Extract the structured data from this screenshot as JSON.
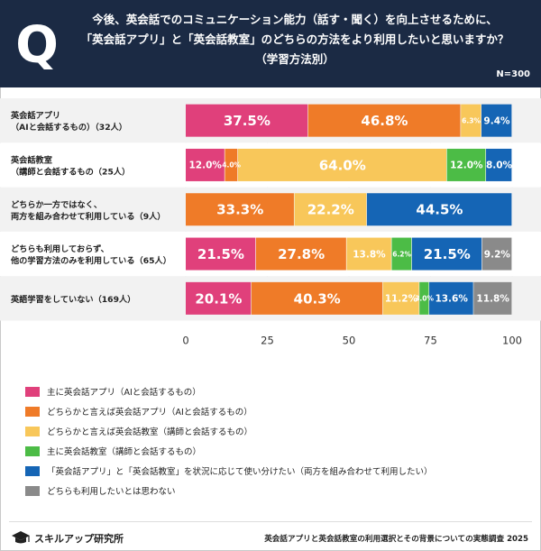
{
  "header": {
    "q_letter": "Q",
    "title_lines": [
      "今後、英会話でのコミュニケーション能力（話す・聞く）を向上させるために、",
      "「英会話アプリ」と「英会話教室」のどちらの方法をより利用したいと思いますか？",
      "（学習方法別）"
    ],
    "sample_size": "N=300"
  },
  "chart_data": {
    "type": "bar",
    "orientation": "horizontal",
    "stacked": true,
    "title": "今後、英会話でのコミュニケーション能力（話す・聞く）を向上させるために、「英会話アプリ」と「英会話教室」のどちらの方法をより利用したいと思いますか？（学習方法別）",
    "xlim": [
      0,
      100
    ],
    "xticks": [
      0,
      25,
      50,
      75,
      100
    ],
    "categories": [
      [
        "英会話アプリ",
        "（AIと会話するもの）（32人）"
      ],
      [
        "英会話教室",
        "（講師と会話するもの（25人）"
      ],
      [
        "どちらか一方ではなく、",
        "両方を組み合わせて利用している（9人）"
      ],
      [
        "どちらも利用しておらず、",
        "他の学習方法のみを利用している（65人）"
      ],
      [
        "英語学習をしていない（169人）"
      ]
    ],
    "series": [
      {
        "name": "主に英会話アプリ（AIと会話するもの）",
        "color": "#e0407b",
        "values": [
          37.5,
          12.0,
          0,
          21.5,
          20.1
        ],
        "labels": [
          "37.5%",
          "12.0%",
          "",
          "21.5%",
          "20.1%"
        ]
      },
      {
        "name": "どちらかと言えば英会話アプリ（AIと会話するもの）",
        "color": "#ef7b28",
        "values": [
          46.8,
          4.0,
          33.3,
          27.8,
          40.3
        ],
        "labels": [
          "46.8%",
          "4.0%",
          "33.3%",
          "27.8%",
          "40.3%"
        ]
      },
      {
        "name": "どちらかと言えば英会話教室（講師と会話するもの）",
        "color": "#f8c75a",
        "values": [
          6.3,
          64.0,
          22.2,
          13.8,
          11.2
        ],
        "labels": [
          "6.3%",
          "64.0%",
          "22.2%",
          "13.8%",
          "11.2%"
        ]
      },
      {
        "name": "主に英会話教室（講師と会話するもの）",
        "color": "#4cbc46",
        "values": [
          0,
          12.0,
          0,
          6.2,
          3.0
        ],
        "labels": [
          "",
          "12.0%",
          "",
          "6.2%",
          "3.0%"
        ]
      },
      {
        "name": "「英会話アプリ」と「英会話教室」を状況に応じて使い分けたい（両方を組み合わせて利用したい）",
        "color": "#1565b5",
        "values": [
          9.4,
          8.0,
          44.5,
          21.5,
          13.6
        ],
        "labels": [
          "9.4%",
          "8.0%",
          "44.5%",
          "21.5%",
          "13.6%"
        ]
      },
      {
        "name": "どちらも利用したいとは思わない",
        "color": "#8a8a8a",
        "values": [
          0,
          0,
          0,
          9.2,
          11.8
        ],
        "labels": [
          "",
          "",
          "",
          "9.2%",
          "11.8%"
        ]
      }
    ]
  },
  "footer": {
    "brand": "スキルアップ研究所",
    "caption": "英会話アプリと英会話教室の利用選択とその背景についての実態調査 2025"
  }
}
